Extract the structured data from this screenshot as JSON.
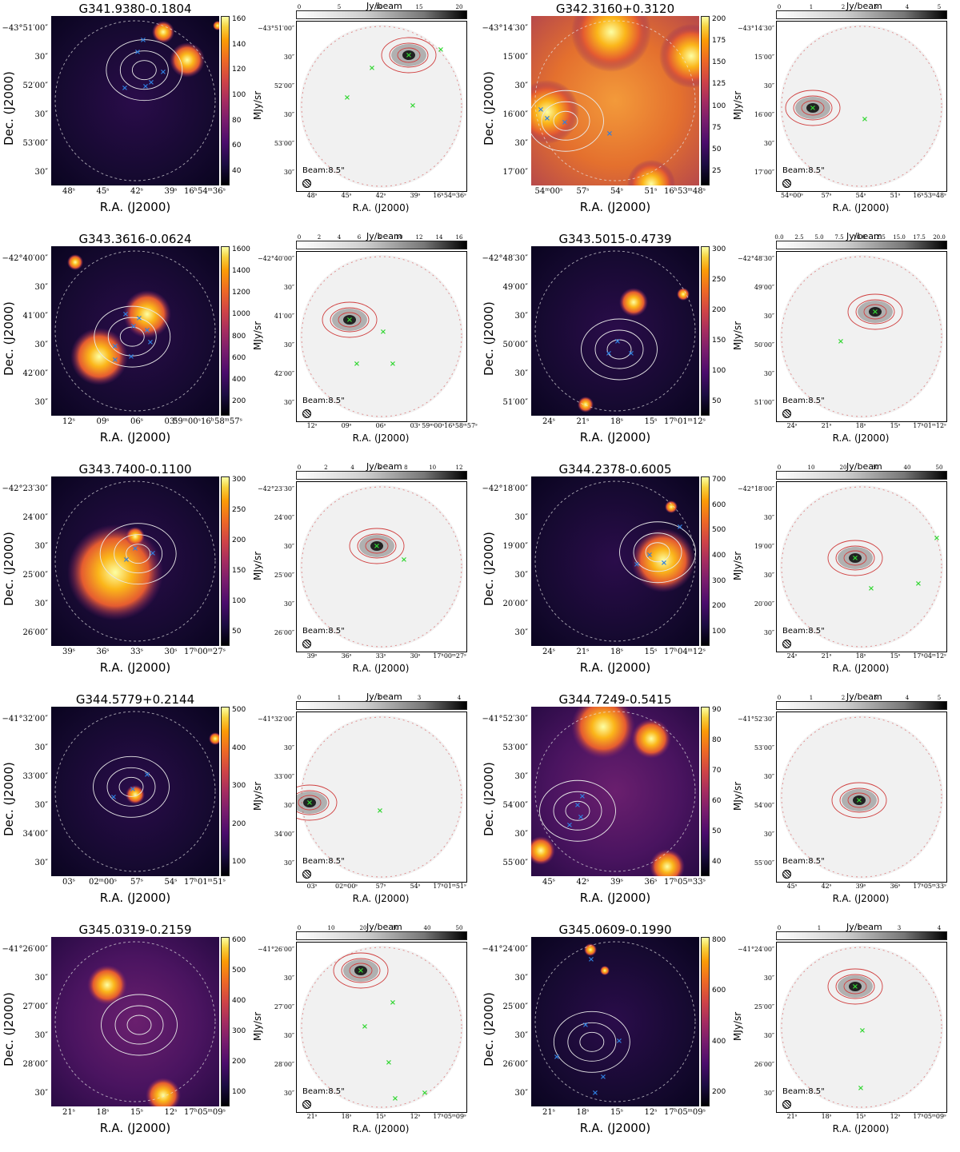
{
  "labels": {
    "dec_axis": "Dec. (J2000)",
    "ra_axis": "R.A. (J2000)",
    "mjy_unit": "MJy/sr",
    "jy_unit": "Jy/beam",
    "beam": "Beam:8.5\""
  },
  "colors": {
    "inferno_low": "#000004",
    "inferno_high": "#fcffa4",
    "contour_ir": "#e8e8e8",
    "contour_radio": "#d04040",
    "cross_blue": "#2f7fe0",
    "cross_green": "#33d633"
  },
  "fields": [
    {
      "name": "G341.9380-0.1804",
      "theme": "dark",
      "ir_dec": [
        "−43°51′00″",
        "30″",
        "52′00″",
        "30″",
        "53′00″",
        "30″"
      ],
      "ir_ra": [
        "48ˢ",
        "45ˢ",
        "42ˢ",
        "39ˢ",
        "16ʰ54ᵐ36ˢ"
      ],
      "ir_cbar": [
        "160",
        "140",
        "120",
        "100",
        "80",
        "60",
        "40"
      ],
      "radio_dec": [
        "−43°51′00″",
        "30″",
        "52′00″",
        "30″",
        "53′00″",
        "30″"
      ],
      "radio_ra": [
        "48ˢ",
        "45ˢ",
        "42ˢ",
        "39ˢ",
        "16ʰ54ᵐ36ˢ"
      ],
      "radio_cbar": [
        "0",
        "5",
        "10",
        "15",
        "20"
      ]
    },
    {
      "name": "G342.3160+0.3120",
      "theme": "bright",
      "ir_dec": [
        "−43°14′30″",
        "15′00″",
        "30″",
        "16′00″",
        "30″",
        "17′00″"
      ],
      "ir_ra": [
        "54ᵐ00ˢ",
        "57ˢ",
        "54ˢ",
        "51ˢ",
        "16ʰ53ᵐ48ˢ"
      ],
      "ir_cbar": [
        "200",
        "175",
        "150",
        "125",
        "100",
        "75",
        "50",
        "25"
      ],
      "radio_dec": [
        "−43°14′30″",
        "15′00″",
        "30″",
        "16′00″",
        "30″",
        "17′00″"
      ],
      "radio_ra": [
        "54ᵐ00ˢ",
        "57ˢ",
        "54ˢ",
        "51ˢ",
        "16ʰ53ᵐ48ˢ"
      ],
      "radio_cbar": [
        "0",
        "1",
        "2",
        "3",
        "4",
        "5"
      ]
    },
    {
      "name": "G343.3616-0.0624",
      "theme": "dark",
      "ir_dec": [
        "−42°40′00″",
        "30″",
        "41′00″",
        "30″",
        "42′00″",
        "30″"
      ],
      "ir_ra": [
        "12ˢ",
        "09ˢ",
        "06ˢ",
        "03ˢ",
        "59ᵐ00ˢ16ʰ58ᵐ57ˢ"
      ],
      "ir_cbar": [
        "1600",
        "1400",
        "1200",
        "1000",
        "800",
        "600",
        "400",
        "200"
      ],
      "radio_dec": [
        "−42°40′00″",
        "30″",
        "41′00″",
        "30″",
        "42′00″",
        "30″"
      ],
      "radio_ra": [
        "12ˢ",
        "09ˢ",
        "06ˢ",
        "03ˢ",
        "59ᵐ00ˢ16ʰ58ᵐ57ˢ"
      ],
      "radio_cbar": [
        "0",
        "2",
        "4",
        "6",
        "8",
        "10",
        "12",
        "14",
        "16"
      ]
    },
    {
      "name": "G343.5015-0.4739",
      "theme": "dark",
      "ir_dec": [
        "−42°48′30″",
        "49′00″",
        "30″",
        "50′00″",
        "30″",
        "51′00″"
      ],
      "ir_ra": [
        "24ˢ",
        "21ˢ",
        "18ˢ",
        "15ˢ",
        "17ʰ01ᵐ12ˢ"
      ],
      "ir_cbar": [
        "300",
        "250",
        "200",
        "150",
        "100",
        "50"
      ],
      "radio_dec": [
        "−42°48′30″",
        "49′00″",
        "30″",
        "50′00″",
        "30″",
        "51′00″"
      ],
      "radio_ra": [
        "24ˢ",
        "21ˢ",
        "18ˢ",
        "15ˢ",
        "17ʰ01ᵐ12ˢ"
      ],
      "radio_cbar": [
        "0.0",
        "2.5",
        "5.0",
        "7.5",
        "10.0",
        "12.5",
        "15.0",
        "17.5",
        "20.0"
      ]
    },
    {
      "name": "G343.7400-0.1100",
      "theme": "dark",
      "ir_dec": [
        "−42°23′30″",
        "24′00″",
        "30″",
        "25′00″",
        "30″",
        "26′00″"
      ],
      "ir_ra": [
        "39ˢ",
        "36ˢ",
        "33ˢ",
        "30ˢ",
        "17ʰ00ᵐ27ˢ"
      ],
      "ir_cbar": [
        "300",
        "250",
        "200",
        "150",
        "100",
        "50"
      ],
      "radio_dec": [
        "−42°23′30″",
        "24′00″",
        "30″",
        "25′00″",
        "30″",
        "26′00″"
      ],
      "radio_ra": [
        "39ˢ",
        "36ˢ",
        "33ˢ",
        "30ˢ",
        "17ʰ00ᵐ27ˢ"
      ],
      "radio_cbar": [
        "0",
        "2",
        "4",
        "6",
        "8",
        "10",
        "12"
      ]
    },
    {
      "name": "G344.2378-0.6005",
      "theme": "dark",
      "ir_dec": [
        "−42°18′00″",
        "30″",
        "19′00″",
        "30″",
        "20′00″",
        "30″"
      ],
      "ir_ra": [
        "24ˢ",
        "21ˢ",
        "18ˢ",
        "15ˢ",
        "17ʰ04ᵐ12ˢ"
      ],
      "ir_cbar": [
        "700",
        "600",
        "500",
        "400",
        "300",
        "200",
        "100"
      ],
      "radio_dec": [
        "−42°18′00″",
        "30″",
        "19′00″",
        "30″",
        "20′00″",
        "30″"
      ],
      "radio_ra": [
        "24ˢ",
        "21ˢ",
        "18ˢ",
        "15ˢ",
        "17ʰ04ᵐ12ˢ"
      ],
      "radio_cbar": [
        "0",
        "10",
        "20",
        "30",
        "40",
        "50"
      ]
    },
    {
      "name": "G344.5779+0.2144",
      "theme": "dark",
      "ir_dec": [
        "−41°32′00″",
        "30″",
        "33′00″",
        "30″",
        "34′00″",
        "30″"
      ],
      "ir_ra": [
        "03ˢ",
        "02ᵐ00ˢ",
        "57ˢ",
        "54ˢ",
        "17ʰ01ᵐ51ˢ"
      ],
      "ir_cbar": [
        "500",
        "400",
        "300",
        "200",
        "100"
      ],
      "radio_dec": [
        "−41°32′00″",
        "30″",
        "33′00″",
        "30″",
        "34′00″",
        "30″"
      ],
      "radio_ra": [
        "03ˢ",
        "02ᵐ00ˢ",
        "57ˢ",
        "54ˢ",
        "17ʰ01ᵐ51ˢ"
      ],
      "radio_cbar": [
        "0",
        "1",
        "2",
        "3",
        "4"
      ]
    },
    {
      "name": "G344.7249-0.5415",
      "theme": "medium",
      "ir_dec": [
        "−41°52′30″",
        "53′00″",
        "30″",
        "54′00″",
        "30″",
        "55′00″"
      ],
      "ir_ra": [
        "45ˢ",
        "42ˢ",
        "39ˢ",
        "36ˢ",
        "17ʰ05ᵐ33ˢ"
      ],
      "ir_cbar": [
        "90",
        "80",
        "70",
        "60",
        "50",
        "40"
      ],
      "radio_dec": [
        "−41°52′30″",
        "53′00″",
        "30″",
        "54′00″",
        "30″",
        "55′00″"
      ],
      "radio_ra": [
        "45ˢ",
        "42ˢ",
        "39ˢ",
        "36ˢ",
        "17ʰ05ᵐ33ˢ"
      ],
      "radio_cbar": [
        "0",
        "1",
        "2",
        "3",
        "4",
        "5"
      ]
    },
    {
      "name": "G345.0319-0.2159",
      "theme": "medium",
      "ir_dec": [
        "−41°26′00″",
        "30″",
        "27′00″",
        "30″",
        "28′00″",
        "30″"
      ],
      "ir_ra": [
        "21ˢ",
        "18ˢ",
        "15ˢ",
        "12ˢ",
        "17ʰ05ᵐ09ˢ"
      ],
      "ir_cbar": [
        "600",
        "500",
        "400",
        "300",
        "200",
        "100"
      ],
      "radio_dec": [
        "−41°26′00″",
        "30″",
        "27′00″",
        "30″",
        "28′00″",
        "30″"
      ],
      "radio_ra": [
        "21ˢ",
        "18ˢ",
        "15ˢ",
        "12ˢ",
        "17ʰ05ᵐ09ˢ"
      ],
      "radio_cbar": [
        "0",
        "10",
        "20",
        "30",
        "40",
        "50"
      ]
    },
    {
      "name": "G345.0609-0.1990",
      "theme": "dark",
      "ir_dec": [
        "−41°24′00″",
        "30″",
        "25′00″",
        "30″",
        "26′00″",
        "30″"
      ],
      "ir_ra": [
        "21ˢ",
        "18ˢ",
        "15ˢ",
        "12ˢ",
        "17ʰ05ᵐ09ˢ"
      ],
      "ir_cbar": [
        "800",
        "600",
        "400",
        "200"
      ],
      "radio_dec": [
        "−41°24′00″",
        "30″",
        "25′00″",
        "30″",
        "26′00″",
        "30″"
      ],
      "radio_ra": [
        "21ˢ",
        "18ˢ",
        "15ˢ",
        "12ˢ",
        "17ʰ05ᵐ09ˢ"
      ],
      "radio_cbar": [
        "0",
        "1",
        "2",
        "3",
        "4"
      ]
    }
  ]
}
